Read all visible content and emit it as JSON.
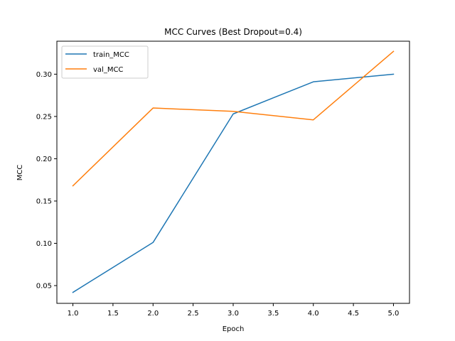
{
  "chart_data": {
    "type": "line",
    "title": "MCC Curves (Best Dropout=0.4)",
    "xlabel": "Epoch",
    "ylabel": "MCC",
    "xlim": [
      0.8,
      5.2
    ],
    "ylim": [
      0.029,
      0.339
    ],
    "xticks": [
      "1.0",
      "1.5",
      "2.0",
      "2.5",
      "3.0",
      "3.5",
      "4.0",
      "4.5",
      "5.0"
    ],
    "yticks": [
      "0.05",
      "0.10",
      "0.15",
      "0.20",
      "0.25",
      "0.30"
    ],
    "grid": false,
    "legend_position": "upper left",
    "series": [
      {
        "name": "train_MCC",
        "color": "#1f77b4",
        "x": [
          1,
          2,
          3,
          4,
          5
        ],
        "y": [
          0.042,
          0.101,
          0.253,
          0.291,
          0.3
        ]
      },
      {
        "name": "val_MCC",
        "color": "#ff7f0e",
        "x": [
          1,
          2,
          3,
          4,
          5
        ],
        "y": [
          0.168,
          0.26,
          0.256,
          0.246,
          0.327
        ]
      }
    ]
  }
}
